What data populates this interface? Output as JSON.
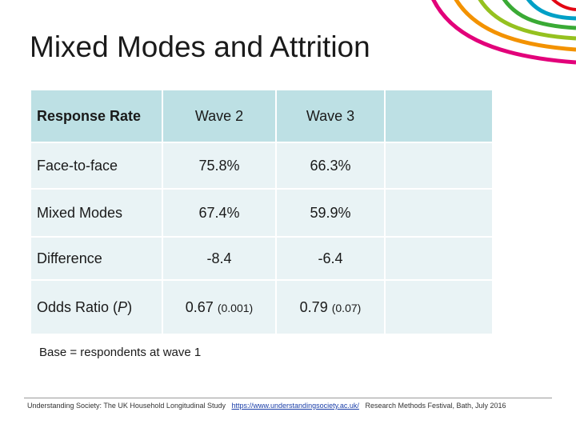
{
  "title": "Mixed Modes and Attrition",
  "colors": {
    "header_bg": "#bde0e4",
    "row_bg": "#e9f3f5",
    "arc_colors": [
      "#e2007a",
      "#f39200",
      "#95c11f",
      "#3aaa35",
      "#00a0c6",
      "#e30613"
    ]
  },
  "table": {
    "headers": [
      "Response Rate",
      "Wave 2",
      "Wave 3",
      ""
    ],
    "rows": [
      {
        "label": "Face-to-face",
        "wave2": "75.8%",
        "wave3": "66.3%"
      },
      {
        "label": "Mixed Modes",
        "wave2": "67.4%",
        "wave3": "59.9%"
      },
      {
        "label": "Difference",
        "wave2": "-8.4",
        "wave3": "-6.4"
      },
      {
        "label": "Odds Ratio (",
        "label_italic": "P",
        "label_end": ")",
        "wave2": "0.67",
        "wave2_p": "(0.001)",
        "wave3": "0.79",
        "wave3_p": "(0.07)"
      }
    ]
  },
  "base_note": "Base = respondents at wave 1",
  "footer": {
    "study": "Understanding Society: The UK Household Longitudinal Study",
    "url": "https://www.understandingsociety.ac.uk/",
    "event": "Research Methods Festival, Bath, July 2016"
  }
}
